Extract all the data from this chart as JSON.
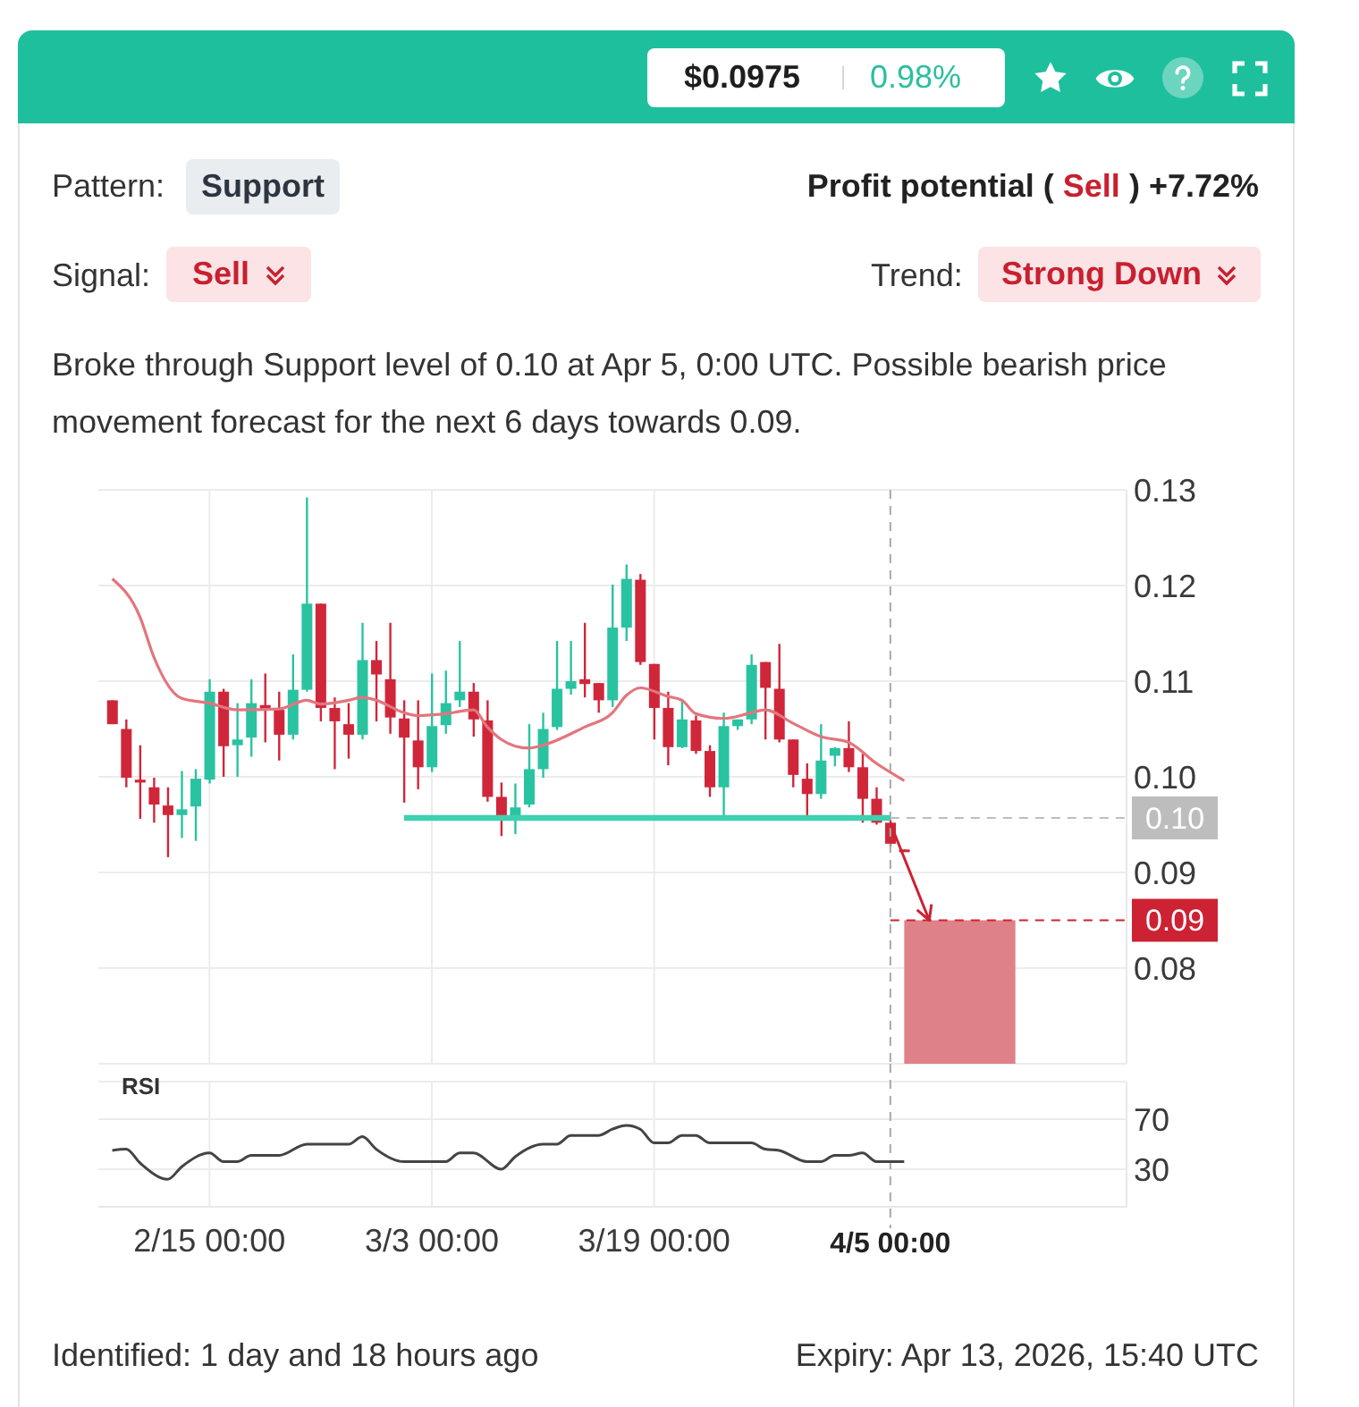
{
  "chart_data": [
    {
      "type": "other",
      "annotations": [
        "$0.0975",
        "0.98%",
        "Pattern:",
        "Support",
        "Profit potential (",
        "Sell",
        ") +7.72%",
        "Signal:",
        "Sell",
        "Trend:",
        "Strong Down",
        "Broke through Support level of 0.10 at Apr 5, 0:00 UTC. Possible bearish price movement forecast for the next 6 days towards 0.09.",
        "Identified: 1 day and 18 hours ago",
        "Expiry: Apr 13, 2026, 15:40 UTC"
      ]
    },
    {
      "type": "candlestick",
      "x": [
        "--02-08",
        "--02-09",
        "--02-10",
        "--02-11",
        "--02-12",
        "--02-13",
        "--02-14",
        "--02-15",
        "--02-16",
        "--02-17",
        "--02-18",
        "--02-19",
        "--02-20",
        "--02-21",
        "--02-22",
        "--02-23",
        "--02-24",
        "--02-25",
        "--02-26",
        "--02-27",
        "--02-28",
        "--03-01",
        "--03-02",
        "--03-03",
        "--03-04",
        "--03-05",
        "--03-06",
        "--03-07",
        "--03-08",
        "--03-09",
        "--03-10",
        "--03-11",
        "--03-12",
        "--03-13",
        "--03-14",
        "--03-15",
        "--03-16",
        "--03-17",
        "--03-18",
        "--03-19",
        "--03-20",
        "--03-21",
        "--03-22",
        "--03-23",
        "--03-24",
        "--03-25",
        "--03-26",
        "--03-27",
        "--03-28",
        "--03-29",
        "--03-30",
        "--03-31",
        "--04-01",
        "--04-02",
        "--04-03",
        "--04-04",
        "--04-05",
        "--04-06"
      ],
      "ohlc": [
        [
          0.108,
          0.108,
          0.1055,
          0.1055
        ],
        [
          0.105,
          0.106,
          0.0989,
          0.0999
        ],
        [
          0.0997,
          0.1033,
          0.0956,
          0.0994
        ],
        [
          0.0989,
          0.0999,
          0.0952,
          0.0971
        ],
        [
          0.097,
          0.0989,
          0.0916,
          0.096
        ],
        [
          0.096,
          0.1006,
          0.0936,
          0.0966
        ],
        [
          0.0969,
          0.1008,
          0.0933,
          0.0998
        ],
        [
          0.0997,
          0.1102,
          0.0993,
          0.1089
        ],
        [
          0.1089,
          0.1092,
          0.1,
          0.1032
        ],
        [
          0.1033,
          0.1077,
          0.1,
          0.1039
        ],
        [
          0.1041,
          0.1102,
          0.1021,
          0.1077
        ],
        [
          0.1075,
          0.1108,
          0.1036,
          0.1071
        ],
        [
          0.107,
          0.1089,
          0.1017,
          0.1044
        ],
        [
          0.1044,
          0.1128,
          0.1039,
          0.1091
        ],
        [
          0.1091,
          0.1292,
          0.1089,
          0.1181
        ],
        [
          0.1181,
          0.1181,
          0.1058,
          0.1072
        ],
        [
          0.1072,
          0.1083,
          0.1008,
          0.1058
        ],
        [
          0.1055,
          0.1077,
          0.1019,
          0.1044
        ],
        [
          0.1044,
          0.1161,
          0.1039,
          0.1122
        ],
        [
          0.1122,
          0.1142,
          0.1058,
          0.1107
        ],
        [
          0.1102,
          0.1161,
          0.1045,
          0.1062
        ],
        [
          0.1061,
          0.108,
          0.0973,
          0.1041
        ],
        [
          0.1038,
          0.108,
          0.0987,
          0.101
        ],
        [
          0.101,
          0.1108,
          0.1005,
          0.1053
        ],
        [
          0.1054,
          0.1111,
          0.1045,
          0.1077
        ],
        [
          0.108,
          0.1142,
          0.1073,
          0.1089
        ],
        [
          0.1089,
          0.1098,
          0.1042,
          0.106
        ],
        [
          0.1059,
          0.108,
          0.0974,
          0.0979
        ],
        [
          0.0979,
          0.0994,
          0.0938,
          0.0955
        ],
        [
          0.0955,
          0.0993,
          0.094,
          0.0968
        ],
        [
          0.0971,
          0.1055,
          0.0968,
          0.1008
        ],
        [
          0.1008,
          0.1067,
          0.0999,
          0.105
        ],
        [
          0.1052,
          0.1142,
          0.1049,
          0.1092
        ],
        [
          0.1092,
          0.1142,
          0.1086,
          0.11
        ],
        [
          0.1102,
          0.1161,
          0.1083,
          0.1097
        ],
        [
          0.1098,
          0.1098,
          0.1067,
          0.108
        ],
        [
          0.108,
          0.1201,
          0.1073,
          0.1156
        ],
        [
          0.1156,
          0.1222,
          0.1142,
          0.1207
        ],
        [
          0.1206,
          0.1212,
          0.1117,
          0.112
        ],
        [
          0.1118,
          0.1118,
          0.1039,
          0.1072
        ],
        [
          0.1072,
          0.1089,
          0.1012,
          0.1031
        ],
        [
          0.1031,
          0.108,
          0.103,
          0.106
        ],
        [
          0.1059,
          0.1064,
          0.1024,
          0.1027
        ],
        [
          0.1027,
          0.1033,
          0.0979,
          0.0989
        ],
        [
          0.0989,
          0.1067,
          0.0955,
          0.1053
        ],
        [
          0.1053,
          0.106,
          0.1049,
          0.106
        ],
        [
          0.106,
          0.1128,
          0.1055,
          0.1117
        ],
        [
          0.112,
          0.112,
          0.1039,
          0.1093
        ],
        [
          0.1092,
          0.1139,
          0.1036,
          0.1039
        ],
        [
          0.1039,
          0.1039,
          0.0989,
          0.1002
        ],
        [
          0.0998,
          0.1014,
          0.0958,
          0.0982
        ],
        [
          0.0982,
          0.1055,
          0.0977,
          0.1017
        ],
        [
          0.1022,
          0.1031,
          0.1011,
          0.103
        ],
        [
          0.103,
          0.1058,
          0.1005,
          0.101
        ],
        [
          0.101,
          0.1024,
          0.0952,
          0.0977
        ],
        [
          0.0977,
          0.0989,
          0.095,
          0.0952
        ],
        [
          0.0952,
          0.0955,
          0.0927,
          0.093
        ],
        [
          0.0924,
          0.0924,
          0.0922,
          0.0922
        ]
      ],
      "colors": [
        "#d0263a",
        "#d0263a",
        "#d0263a",
        "#d0263a",
        "#d0263a",
        "#2ac3a1",
        "#2ac3a1",
        "#2ac3a1",
        "#d0263a",
        "#2ac3a1",
        "#2ac3a1",
        "#d0263a",
        "#d0263a",
        "#2ac3a1",
        "#2ac3a1",
        "#d0263a",
        "#d0263a",
        "#d0263a",
        "#2ac3a1",
        "#d0263a",
        "#d0263a",
        "#d0263a",
        "#d0263a",
        "#2ac3a1",
        "#2ac3a1",
        "#2ac3a1",
        "#d0263a",
        "#d0263a",
        "#d0263a",
        "#2ac3a1",
        "#2ac3a1",
        "#2ac3a1",
        "#2ac3a1",
        "#2ac3a1",
        "#d0263a",
        "#d0263a",
        "#2ac3a1",
        "#2ac3a1",
        "#d0263a",
        "#d0263a",
        "#d0263a",
        "#2ac3a1",
        "#d0263a",
        "#d0263a",
        "#2ac3a1",
        "#2ac3a1",
        "#2ac3a1",
        "#d0263a",
        "#d0263a",
        "#d0263a",
        "#d0263a",
        "#2ac3a1",
        "#2ac3a1",
        "#d0263a",
        "#d0263a",
        "#d0263a",
        "#d0263a",
        "#d0263a"
      ],
      "series": [
        {
          "type": "line",
          "x": [
            "--02-08",
            "--02-10",
            "--02-11",
            "--02-13",
            "--02-15",
            "--02-17",
            "--02-20",
            "--02-22",
            "--02-23",
            "--02-25",
            "--02-26",
            "--02-27",
            "--03-01",
            "--03-02",
            "--03-04",
            "--03-06",
            "--03-07",
            "--03-08",
            "--03-09",
            "--03-10",
            "--03-11",
            "--03-14",
            "--03-16",
            "--03-17",
            "--03-18",
            "--03-20",
            "--03-21",
            "--03-22",
            "--03-24",
            "--03-26",
            "--03-27",
            "--03-29",
            "--03-31",
            "--04-02",
            "--04-04",
            "--04-06"
          ],
          "values": [
            0.1207,
            0.1167,
            0.1125,
            0.1082,
            0.1077,
            0.107,
            0.1071,
            0.108,
            0.1076,
            0.108,
            0.1083,
            0.108,
            0.1067,
            0.1064,
            0.1066,
            0.107,
            0.1052,
            0.1039,
            0.1032,
            0.103,
            0.1033,
            0.1052,
            0.1067,
            0.1085,
            0.1093,
            0.1084,
            0.108,
            0.1066,
            0.1061,
            0.1067,
            0.107,
            0.1056,
            0.1042,
            0.1036,
            0.1014,
            0.0996
          ],
          "color": "#e3757d"
        },
        {
          "type": "line",
          "x": [
            "--03-01",
            "--04-05"
          ],
          "values": [
            0.0957,
            0.0957
          ],
          "color": "#3fd0b0"
        },
        {
          "type": "area",
          "x": [
            "--04-06",
            "--04-14"
          ],
          "values": [
            0.085,
            0.085
          ],
          "color": "#de8188"
        }
      ],
      "xlim": [
        "--02-07",
        "--04-22"
      ],
      "xticks": [
        "--02-15",
        "--03-03",
        "--03-19"
      ],
      "ylim": [
        0.07,
        0.13
      ],
      "yticks": [
        0.08,
        0.09,
        {
          "value": 0.1,
          "label": "0.10"
        },
        0.11,
        0.12,
        0.13
      ],
      "tick_labels": "y",
      "grid": true,
      "ref_lines": [
        {
          "axis": "x",
          "value": "--04-05",
          "line_style": "dashed",
          "color": "#a8a8a8"
        },
        {
          "axis": "y",
          "value": 0.0957,
          "label": "0.10",
          "line_style": "dashed",
          "color": "#bdbdbd"
        },
        {
          "axis": "y",
          "value": 0.085,
          "label": "0.09",
          "line_style": "dashed",
          "color": "#cc2233"
        }
      ]
    },
    {
      "type": "line",
      "title": "RSI",
      "x": [
        "--02-08",
        "--02-09",
        "--02-10",
        "--02-12",
        "--02-13",
        "--02-15",
        "--02-16",
        "--02-17",
        "--02-18",
        "--02-20",
        "--02-22",
        "--02-25",
        "--02-26",
        "--02-27",
        "--03-01",
        "--03-04",
        "--03-05",
        "--03-06",
        "--03-08",
        "--03-09",
        "--03-11",
        "--03-12",
        "--03-13",
        "--03-15",
        "--03-16",
        "--03-17",
        "--03-18",
        "--03-19",
        "--03-20",
        "--03-21",
        "--03-22",
        "--03-23",
        "--03-26",
        "--03-27",
        "--03-28",
        "--03-30",
        "--03-31",
        "--04-01",
        "--04-02",
        "--04-03",
        "--04-04",
        "--04-06"
      ],
      "values": [
        45,
        46,
        35,
        22,
        32,
        43,
        36,
        36,
        41,
        41,
        50,
        50,
        56,
        46,
        36,
        36,
        43,
        43,
        30,
        40,
        50,
        50,
        57,
        57,
        62,
        65,
        62,
        51,
        51,
        57,
        57,
        51,
        51,
        46,
        45,
        36,
        36,
        41,
        41,
        43,
        36,
        36
      ],
      "color": "#444444",
      "xlim": [
        "--02-07",
        "--04-22"
      ],
      "xticks": [
        {
          "value": "--02-15",
          "label": "2/15 00:00"
        },
        {
          "value": "--03-03",
          "label": "3/3 00:00"
        },
        {
          "value": "--03-19",
          "label": "3/19 00:00"
        }
      ],
      "ylim": [
        0,
        100
      ],
      "yticks": [
        30,
        70
      ],
      "grid": true,
      "ref_lines": [
        {
          "axis": "x",
          "value": "--04-05",
          "label": "4/5 00:00",
          "line_style": "dashed",
          "color": "#a8a8a8"
        }
      ]
    }
  ]
}
